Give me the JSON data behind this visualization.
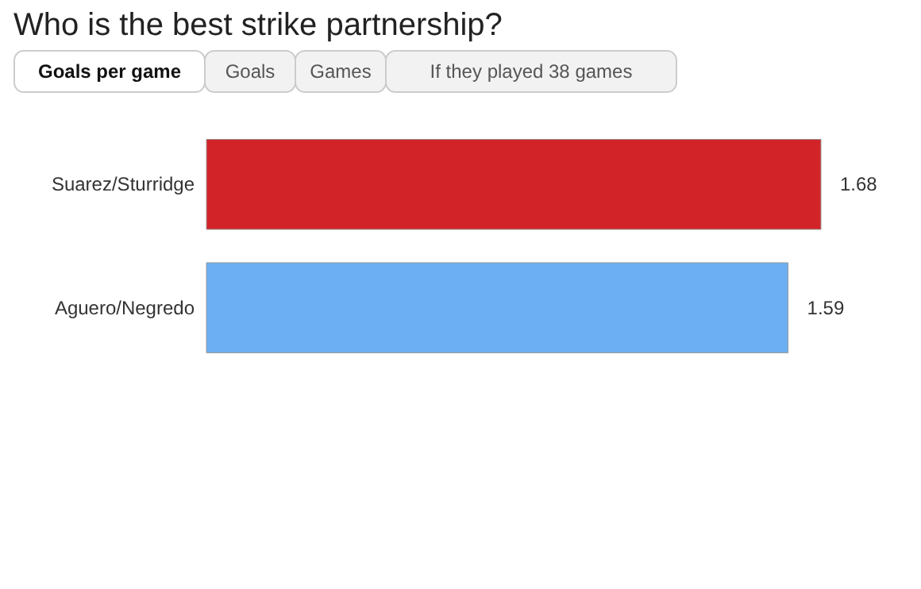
{
  "chart_data": {
    "type": "bar",
    "orientation": "horizontal",
    "title": "Who is the best strike partnership?",
    "annotations": [
      "Goals per game",
      "Goals",
      "Games",
      "If they played 38 games"
    ],
    "categories": [
      "Suarez/Sturridge",
      "Aguero/Negredo"
    ],
    "values": [
      1.68,
      1.59
    ],
    "colors": [
      "#d22428",
      "#6caff2"
    ],
    "data_labels": true
  }
}
